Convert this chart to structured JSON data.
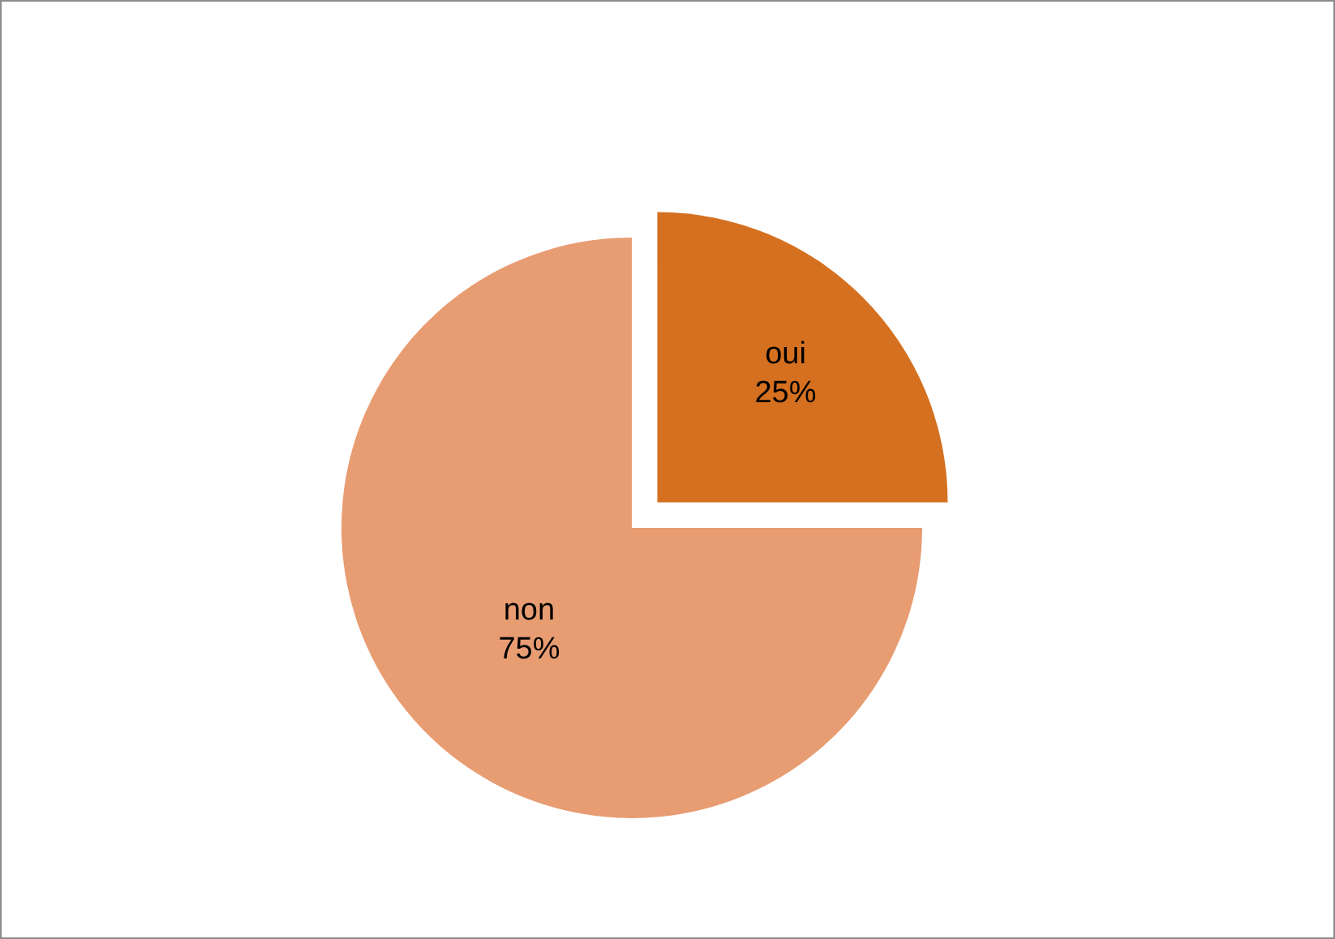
{
  "chart_data": {
    "type": "pie",
    "categories": [
      "oui",
      "non"
    ],
    "values": [
      25,
      75
    ],
    "value_labels": [
      "25%",
      "75%"
    ],
    "colors": [
      "#d4701f",
      "#e89c72"
    ],
    "legend": false
  }
}
